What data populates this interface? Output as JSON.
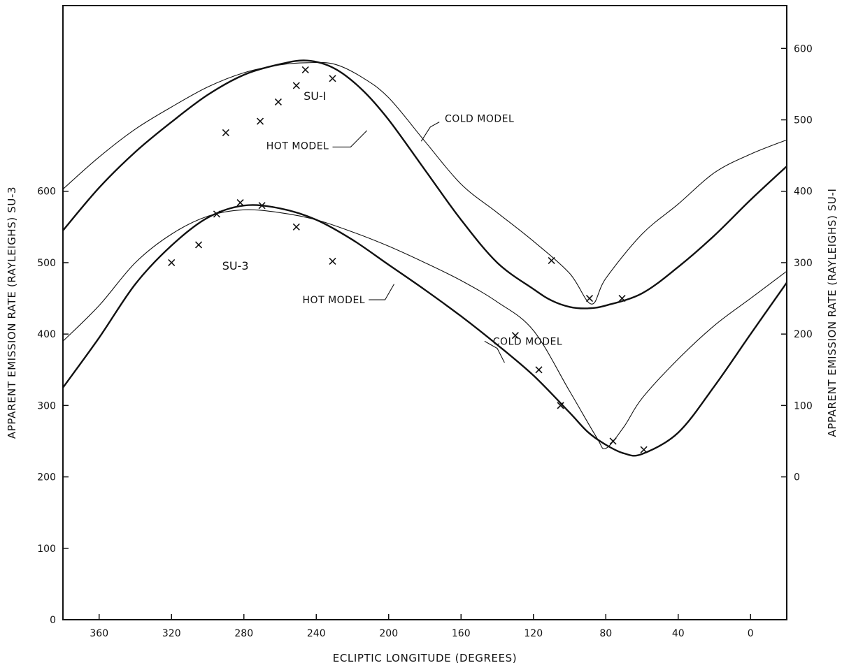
{
  "chart_data": {
    "type": "line",
    "xlabel": "ECLIPTIC LONGITUDE (DEGREES)",
    "ylabel_left": "APPARENT EMISSION RATE (RAYLEIGHS) SU-3",
    "ylabel_right": "APPARENT EMISSION RATE (RAYLEIGHS) SU-I",
    "x_axis": {
      "reversed": true,
      "range": [
        380,
        -20
      ],
      "ticks": [
        360,
        320,
        280,
        240,
        200,
        160,
        120,
        80,
        40,
        0
      ]
    },
    "y_left": {
      "range": [
        0,
        860
      ],
      "ticks": [
        0,
        100,
        200,
        300,
        400,
        500,
        600
      ]
    },
    "y_right": {
      "range": [
        -200,
        660
      ],
      "ticks": [
        0,
        100,
        200,
        300,
        400,
        500,
        600
      ]
    },
    "grid": false,
    "labels": {
      "su1": "SU-I",
      "su3": "SU-3",
      "hot_model": "HOT MODEL",
      "cold_model": "COLD MODEL"
    },
    "series": [
      {
        "name": "SU-I",
        "axis": "right",
        "observations": [
          {
            "x": 290,
            "y": 482
          },
          {
            "x": 271,
            "y": 498
          },
          {
            "x": 261,
            "y": 525
          },
          {
            "x": 251,
            "y": 548
          },
          {
            "x": 246,
            "y": 570
          },
          {
            "x": 231,
            "y": 558
          },
          {
            "x": 110,
            "y": 303
          },
          {
            "x": 89,
            "y": 250
          },
          {
            "x": 71,
            "y": 250
          }
        ],
        "models": [
          {
            "name": "HOT MODEL",
            "points": [
              [
                380,
                345
              ],
              [
                360,
                405
              ],
              [
                340,
                455
              ],
              [
                320,
                497
              ],
              [
                300,
                535
              ],
              [
                280,
                563
              ],
              [
                260,
                578
              ],
              [
                245,
                583
              ],
              [
                230,
                572
              ],
              [
                215,
                543
              ],
              [
                200,
                500
              ],
              [
                180,
                430
              ],
              [
                160,
                360
              ],
              [
                140,
                300
              ],
              [
                120,
                263
              ],
              [
                110,
                247
              ],
              [
                100,
                238
              ],
              [
                90,
                236
              ],
              [
                80,
                240
              ],
              [
                60,
                257
              ],
              [
                40,
                294
              ],
              [
                20,
                338
              ],
              [
                0,
                388
              ],
              [
                -20,
                435
              ]
            ]
          },
          {
            "name": "COLD MODEL",
            "points": [
              [
                380,
                403
              ],
              [
                360,
                448
              ],
              [
                340,
                487
              ],
              [
                320,
                518
              ],
              [
                300,
                546
              ],
              [
                280,
                566
              ],
              [
                260,
                577
              ],
              [
                245,
                580
              ],
              [
                230,
                578
              ],
              [
                215,
                560
              ],
              [
                200,
                531
              ],
              [
                180,
                470
              ],
              [
                160,
                410
              ],
              [
                140,
                370
              ],
              [
                120,
                330
              ],
              [
                100,
                285
              ],
              [
                88,
                242
              ],
              [
                80,
                278
              ],
              [
                60,
                340
              ],
              [
                40,
                382
              ],
              [
                20,
                426
              ],
              [
                0,
                452
              ],
              [
                -20,
                472
              ]
            ]
          }
        ]
      },
      {
        "name": "SU-3",
        "axis": "left",
        "observations": [
          {
            "x": 320,
            "y": 500
          },
          {
            "x": 305,
            "y": 525
          },
          {
            "x": 295,
            "y": 568
          },
          {
            "x": 282,
            "y": 584
          },
          {
            "x": 270,
            "y": 580
          },
          {
            "x": 251,
            "y": 550
          },
          {
            "x": 231,
            "y": 502
          },
          {
            "x": 130,
            "y": 398
          },
          {
            "x": 117,
            "y": 350
          },
          {
            "x": 105,
            "y": 300
          },
          {
            "x": 76,
            "y": 250
          },
          {
            "x": 59,
            "y": 238
          }
        ],
        "models": [
          {
            "name": "HOT MODEL",
            "points": [
              [
                380,
                325
              ],
              [
                360,
                395
              ],
              [
                340,
                470
              ],
              [
                320,
                524
              ],
              [
                300,
                563
              ],
              [
                280,
                580
              ],
              [
                260,
                576
              ],
              [
                240,
                560
              ],
              [
                220,
                532
              ],
              [
                200,
                497
              ],
              [
                180,
                462
              ],
              [
                160,
                425
              ],
              [
                140,
                385
              ],
              [
                120,
                342
              ],
              [
                100,
                290
              ],
              [
                90,
                263
              ],
              [
                80,
                245
              ],
              [
                70,
                233
              ],
              [
                60,
                232
              ],
              [
                40,
                262
              ],
              [
                20,
                327
              ],
              [
                0,
                400
              ],
              [
                -20,
                472
              ]
            ]
          },
          {
            "name": "COLD MODEL",
            "points": [
              [
                380,
                390
              ],
              [
                360,
                440
              ],
              [
                340,
                500
              ],
              [
                320,
                540
              ],
              [
                300,
                565
              ],
              [
                280,
                574
              ],
              [
                260,
                570
              ],
              [
                240,
                560
              ],
              [
                220,
                543
              ],
              [
                200,
                523
              ],
              [
                180,
                500
              ],
              [
                160,
                475
              ],
              [
                140,
                445
              ],
              [
                120,
                405
              ],
              [
                100,
                320
              ],
              [
                85,
                255
              ],
              [
                80,
                240
              ],
              [
                70,
                270
              ],
              [
                60,
                310
              ],
              [
                40,
                365
              ],
              [
                20,
                412
              ],
              [
                0,
                450
              ],
              [
                -20,
                488
              ]
            ]
          }
        ]
      }
    ]
  }
}
